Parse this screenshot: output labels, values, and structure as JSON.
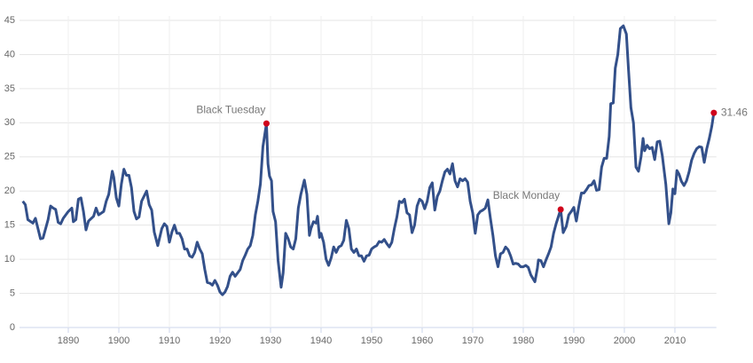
{
  "chart_data": {
    "type": "line",
    "color": "#33508a",
    "marker_color": "#d0021b",
    "grid": true,
    "xlim": [
      1881,
      2018.2
    ],
    "ylim": [
      0,
      45
    ],
    "xticks": [
      1890,
      1900,
      1910,
      1920,
      1930,
      1940,
      1950,
      1960,
      1970,
      1980,
      1990,
      2000,
      2010
    ],
    "yticks": [
      0,
      5,
      10,
      15,
      20,
      25,
      30,
      35,
      40,
      45
    ],
    "x": [
      1881,
      1881.5,
      1882,
      1883,
      1883.5,
      1884,
      1884.5,
      1885,
      1886,
      1886.5,
      1887,
      1887.5,
      1888,
      1888.5,
      1889,
      1890,
      1890.7,
      1891,
      1891.5,
      1892,
      1892.5,
      1893,
      1893.5,
      1894,
      1895,
      1895.5,
      1896,
      1897,
      1897.5,
      1898,
      1898.7,
      1899,
      1899.5,
      1900,
      1900.5,
      1901,
      1901.5,
      1902,
      1902.5,
      1903,
      1903.5,
      1904,
      1904.5,
      1905.5,
      1906,
      1906.5,
      1907,
      1907.7,
      1908.5,
      1909,
      1909.5,
      1910,
      1910.5,
      1911,
      1911.5,
      1912,
      1912.5,
      1913,
      1913.5,
      1914,
      1914.5,
      1915,
      1915.5,
      1916,
      1916.5,
      1917,
      1917.5,
      1918,
      1918.5,
      1919,
      1919.5,
      1920,
      1920.5,
      1921,
      1921.5,
      1922,
      1922.5,
      1923,
      1923.5,
      1924,
      1924.5,
      1925,
      1925.5,
      1926,
      1926.5,
      1927,
      1927.5,
      1928,
      1928.5,
      1929.2,
      1929.5,
      1929.8,
      1930.2,
      1930.5,
      1931,
      1931.5,
      1932.1,
      1932.5,
      1933,
      1933.5,
      1934,
      1934.5,
      1935,
      1935.5,
      1936,
      1936.7,
      1937.2,
      1937.7,
      1938,
      1938.5,
      1939,
      1939.3,
      1939.7,
      1940,
      1940.5,
      1941,
      1941.5,
      1942,
      1942.5,
      1943,
      1943.5,
      1944,
      1944.5,
      1945,
      1945.5,
      1946,
      1946.5,
      1947,
      1947.5,
      1948,
      1948.5,
      1949,
      1949.5,
      1950,
      1950.5,
      1951,
      1951.5,
      1952,
      1952.5,
      1953,
      1953.5,
      1954,
      1954.5,
      1955,
      1955.5,
      1956,
      1956.5,
      1957,
      1957.5,
      1958,
      1958.5,
      1959,
      1959.5,
      1960,
      1960.5,
      1961,
      1961.5,
      1962,
      1962.5,
      1963,
      1963.5,
      1964,
      1964.5,
      1965,
      1965.5,
      1966,
      1966.5,
      1967,
      1967.5,
      1968,
      1968.5,
      1969,
      1969.5,
      1970,
      1970.5,
      1971,
      1971.5,
      1972,
      1972.5,
      1973,
      1973.5,
      1974,
      1974.5,
      1975,
      1975.5,
      1976,
      1976.5,
      1977,
      1977.5,
      1978,
      1978.5,
      1979,
      1979.5,
      1980,
      1980.5,
      1981,
      1981.5,
      1982.3,
      1982.8,
      1983,
      1983.5,
      1984,
      1984.5,
      1985,
      1985.5,
      1986,
      1986.5,
      1987.4,
      1987.9,
      1988.5,
      1989,
      1989.5,
      1990,
      1990.5,
      1991,
      1991.5,
      1992,
      1992.5,
      1993,
      1993.5,
      1994,
      1994.5,
      1995,
      1995.5,
      1996,
      1996.5,
      1997,
      1997.3,
      1997.8,
      1998.2,
      1998.7,
      1999.2,
      1999.8,
      2000.4,
      2000.8,
      2001.3,
      2001.8,
      2002.3,
      2002.8,
      2003.3,
      2003.7,
      2004,
      2004.5,
      2005,
      2005.5,
      2006,
      2006.5,
      2007,
      2007.5,
      2008.2,
      2008.8,
      2009.2,
      2009.6,
      2010,
      2010.4,
      2010.8,
      2011.3,
      2011.8,
      2012.3,
      2012.8,
      2013.3,
      2013.8,
      2014.3,
      2014.8,
      2015.3,
      2015.8,
      2016.3,
      2016.8,
      2017.3,
      2017.7
    ],
    "values": [
      18.5,
      18,
      15.8,
      15.3,
      16,
      14.5,
      13,
      13.1,
      15.8,
      17.8,
      17.5,
      17.3,
      15.4,
      15.2,
      16,
      17,
      17.5,
      15.5,
      15.8,
      18.8,
      19,
      17,
      14.3,
      15.6,
      16.3,
      17.5,
      16.5,
      17,
      18.5,
      19.5,
      22.9,
      22,
      19,
      17.8,
      21,
      23.2,
      22.3,
      22.3,
      20.5,
      17,
      15.9,
      16.2,
      18.5,
      20,
      18,
      17.2,
      14,
      12,
      14.5,
      15.2,
      14.8,
      12.5,
      14,
      15,
      13.8,
      13.8,
      13,
      11.5,
      11.5,
      10.5,
      10.3,
      11,
      12.5,
      11.5,
      10.8,
      8.5,
      6.6,
      6.5,
      6.2,
      6.9,
      6.2,
      5.2,
      4.8,
      5.2,
      6,
      7.5,
      8.1,
      7.5,
      8,
      8.5,
      9.8,
      10.6,
      11.5,
      12,
      13.5,
      16.5,
      18.5,
      21,
      26.5,
      29.9,
      24,
      22.2,
      21.5,
      17,
      15.5,
      9.8,
      5.9,
      8,
      13.8,
      13,
      11.8,
      11.5,
      13,
      17.5,
      19.5,
      21.6,
      19.5,
      13.5,
      14.5,
      15.5,
      15.3,
      16.3,
      13.2,
      13.8,
      12.5,
      10,
      9.1,
      10.2,
      11.8,
      11,
      11.8,
      12,
      12.8,
      15.7,
      14.5,
      11.5,
      11,
      11.5,
      10.5,
      10.5,
      9.7,
      10.5,
      10.6,
      11.5,
      11.8,
      12,
      12.6,
      12.5,
      12.9,
      12.3,
      11.8,
      12.5,
      14.5,
      16.2,
      18.5,
      18.3,
      18.8,
      16.8,
      16.5,
      13.9,
      15,
      17.8,
      18.8,
      18.5,
      17.4,
      18.5,
      20.5,
      21.2,
      17.2,
      19.2,
      20,
      21.5,
      22.8,
      23.2,
      22.5,
      24,
      21.5,
      20.6,
      21.8,
      21.5,
      21.8,
      21.3,
      18.5,
      16.8,
      13.8,
      16.5,
      17,
      17.2,
      17.5,
      18.7,
      16,
      13.5,
      10.5,
      8.9,
      10.8,
      11,
      11.8,
      11.4,
      10.5,
      9.3,
      9.4,
      9.3,
      8.9,
      8.9,
      9.1,
      8.8,
      7.7,
      6.7,
      8.7,
      9.9,
      9.8,
      8.9,
      9.9,
      10.8,
      11.8,
      13.8,
      15.2,
      17.3,
      13.9,
      14.8,
      16.5,
      17,
      17.6,
      15.6,
      17.8,
      19.7,
      19.7,
      20.2,
      20.8,
      20.9,
      21.5,
      20.1,
      20.2,
      23.5,
      24.8,
      24.8,
      28,
      32.8,
      32.9,
      38,
      40,
      43.8,
      44.2,
      43,
      38,
      32.2,
      30,
      23.5,
      22.9,
      25,
      27.7,
      25.9,
      26.7,
      26.2,
      26.4,
      24.6,
      27.2,
      27.3,
      25.2,
      21,
      15.2,
      16.8,
      20.3,
      19.6,
      23,
      22.5,
      21.4,
      20.8,
      21.5,
      22.8,
      24.5,
      25.5,
      26.2,
      26.5,
      26.4,
      24.2,
      26.2,
      27.7,
      29.5,
      31.46
    ],
    "annotations": [
      {
        "label": "Black Tuesday",
        "x": 1929.2,
        "y": 29.9,
        "label_position": "above"
      },
      {
        "label": "Black Monday",
        "x": 1987.4,
        "y": 17.3,
        "label_position": "above"
      },
      {
        "label": "31.46",
        "x": 2017.7,
        "y": 31.46,
        "label_position": "right"
      }
    ]
  }
}
